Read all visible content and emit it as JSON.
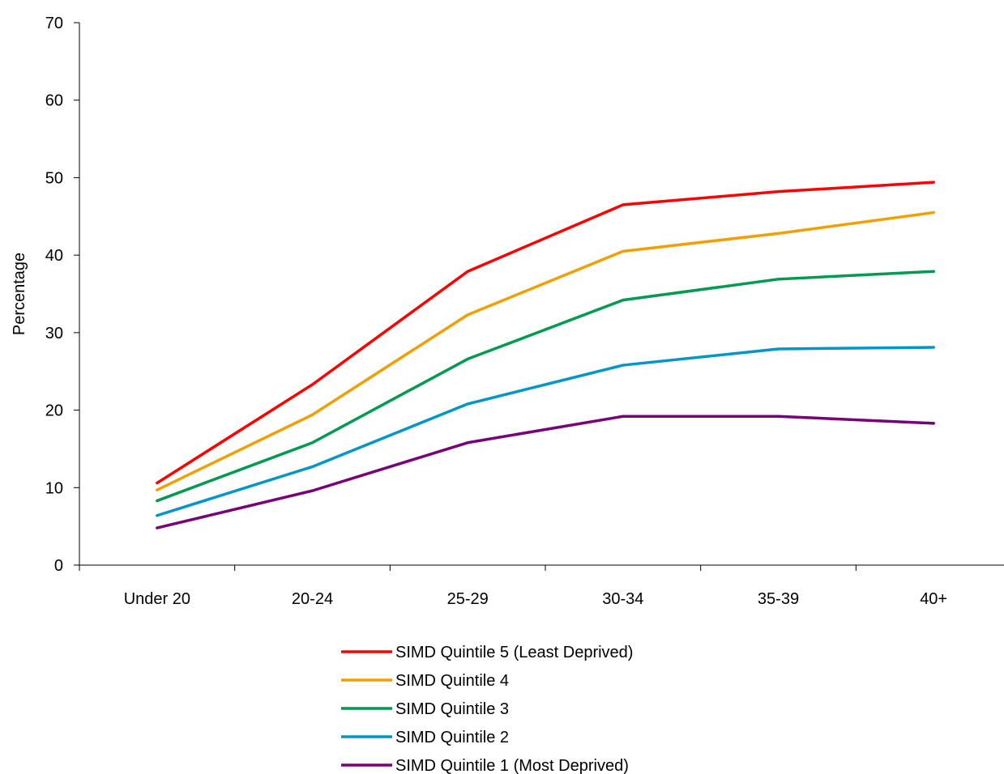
{
  "chart_data": {
    "type": "line",
    "title": "",
    "xlabel": "",
    "ylabel": "Percentage",
    "ylim": [
      0,
      70
    ],
    "yticks": [
      "0",
      "10",
      "20",
      "30",
      "40",
      "50",
      "60",
      "70"
    ],
    "categories": [
      "Under 20",
      "20-24",
      "25-29",
      "30-34",
      "35-39",
      "40+"
    ],
    "grid": false,
    "legend_position": "bottom",
    "series": [
      {
        "name": "SIMD Quintile 5 (Least Deprived)",
        "color": "#ff0000",
        "values": [
          10.6,
          23.3,
          37.9,
          46.5,
          48.2,
          49.4
        ]
      },
      {
        "name": "SIMD Quintile 4",
        "color": "#f0a000",
        "values": [
          9.7,
          19.4,
          32.3,
          40.5,
          42.8,
          45.5
        ]
      },
      {
        "name": "SIMD Quintile 3",
        "color": "#009a50",
        "values": [
          8.3,
          15.8,
          26.6,
          34.2,
          36.9,
          37.9
        ]
      },
      {
        "name": "SIMD Quintile 2",
        "color": "#0096c8",
        "values": [
          6.4,
          12.7,
          20.8,
          25.8,
          27.9,
          28.1
        ]
      },
      {
        "name": "SIMD Quintile 1 (Most Deprived)",
        "color": "#780078",
        "values": [
          4.8,
          9.6,
          15.8,
          19.2,
          19.2,
          18.3
        ]
      }
    ]
  }
}
